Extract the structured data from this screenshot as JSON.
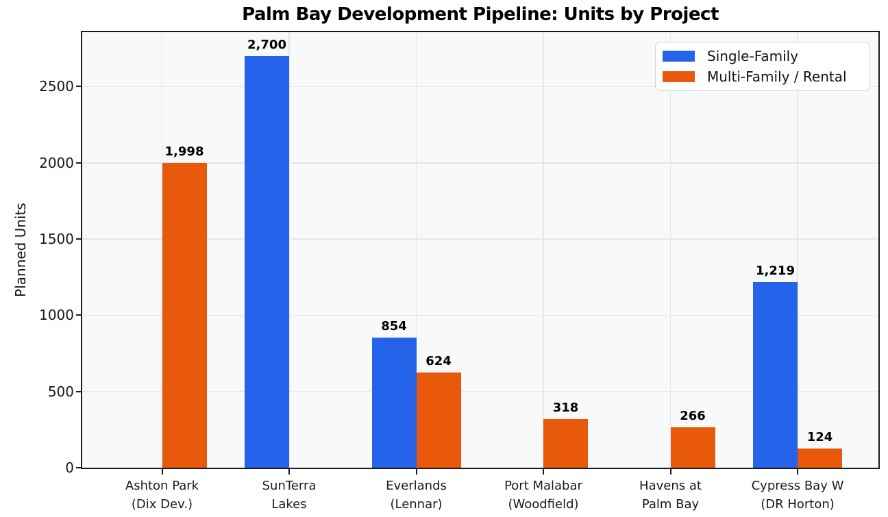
{
  "chart_data": {
    "type": "bar",
    "title": "Palm Bay Development Pipeline: Units by Project",
    "ylabel": "Planned Units",
    "xlabel": "",
    "categories": [
      [
        "Ashton Park",
        "(Dix Dev.)"
      ],
      [
        "SunTerra",
        "Lakes"
      ],
      [
        "Everlands",
        "(Lennar)"
      ],
      [
        "Port Malabar",
        "(Woodfield)"
      ],
      [
        "Havens at",
        "Palm Bay"
      ],
      [
        "Cypress Bay W",
        "(DR Horton)"
      ]
    ],
    "series": [
      {
        "name": "Single-Family",
        "color": "#2563eb",
        "values": [
          0,
          2700,
          854,
          0,
          0,
          1219
        ],
        "labels": [
          "",
          "2,700",
          "854",
          "",
          "",
          "1,219"
        ]
      },
      {
        "name": "Multi-Family / Rental",
        "color": "#e8590c",
        "values": [
          1998,
          0,
          624,
          318,
          266,
          124
        ],
        "labels": [
          "1,998",
          "",
          "624",
          "318",
          "266",
          "124"
        ]
      }
    ],
    "yticks": [
      "0",
      "500",
      "1000",
      "1500",
      "2000",
      "2500"
    ],
    "ylim": [
      0,
      2857
    ],
    "grid": true,
    "legend_position": "upper right",
    "colors": {
      "plot_background": "#f8f9fa",
      "grid": "#e4e6ea",
      "axis": "#1a1a1a",
      "text": "#111111"
    }
  }
}
